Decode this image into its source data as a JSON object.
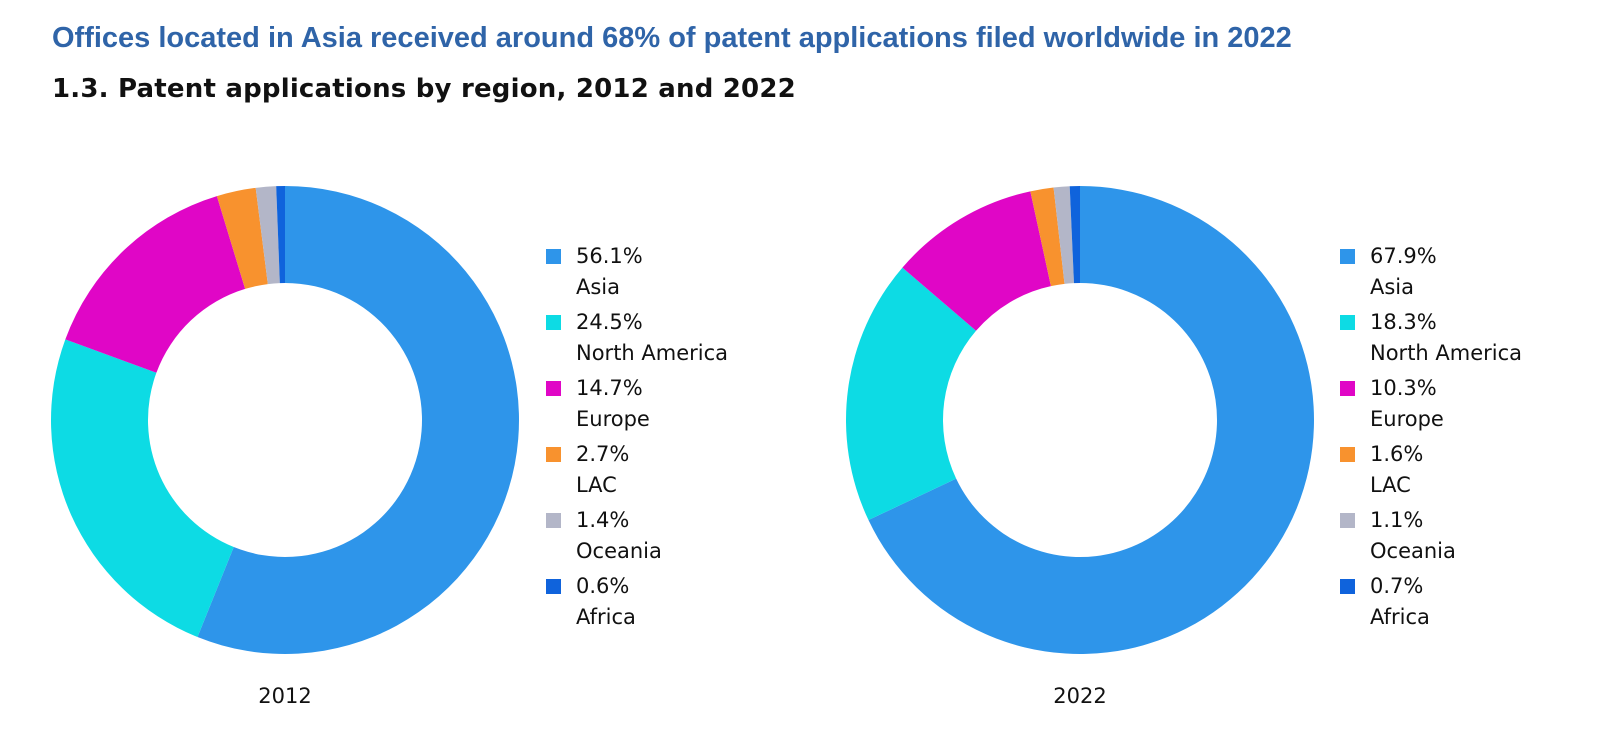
{
  "headline": "Offices located in Asia received around 68% of patent applications filed worldwide in 2022",
  "subtitle": "1.3.  Patent applications by region, 2012 and 2022",
  "colors": {
    "Asia": "#2e95ea",
    "North America": "#0ddbe4",
    "Europe": "#e006c6",
    "LAC": "#f8922e",
    "Oceania": "#b3b6c8",
    "Africa": "#0f63dc"
  },
  "chart_data": [
    {
      "type": "pie",
      "title": "2012",
      "categories": [
        "Asia",
        "North America",
        "Europe",
        "LAC",
        "Oceania",
        "Africa"
      ],
      "values": [
        56.1,
        24.5,
        14.7,
        2.7,
        1.4,
        0.6
      ],
      "value_labels": [
        "56.1%",
        "24.5%",
        "14.7%",
        "2.7%",
        "1.4%",
        "0.6%"
      ],
      "legend_position": "right"
    },
    {
      "type": "pie",
      "title": "2022",
      "categories": [
        "Asia",
        "North America",
        "Europe",
        "LAC",
        "Oceania",
        "Africa"
      ],
      "values": [
        67.9,
        18.3,
        10.3,
        1.6,
        1.1,
        0.7
      ],
      "value_labels": [
        "67.9%",
        "18.3%",
        "10.3%",
        "1.6%",
        "1.1%",
        "0.7%"
      ],
      "legend_position": "right"
    }
  ]
}
